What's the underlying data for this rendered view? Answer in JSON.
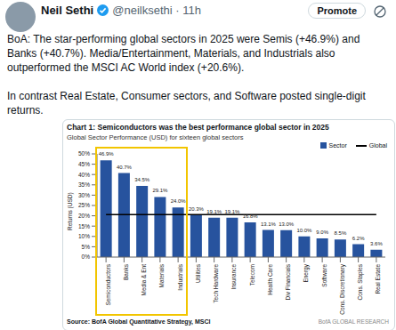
{
  "tweet": {
    "name": "Neil Sethi",
    "meta": "@neilksethi · 11h",
    "button": "Promote",
    "paragraphs": [
      "BoA: The star-performing global sectors in 2025 were Semis (+46.9%) and Banks (+40.7%). Media/Entertainment, Materials, and Industrials also outperformed the MSCI AC World index (+20.6%).",
      "In contrast Real Estate, Consumer sectors, and Software posted single-digit returns."
    ]
  },
  "chart_data": {
    "type": "bar",
    "title": "Chart 1: Semiconductors was the best performance global sector in 2025",
    "subtitle": "Global Sector Performance (USD) for sixteen global sectors",
    "y_label": "Returns (USD)",
    "source": "Source: BofA Global Quantitative Strategy, MSCI",
    "brand": "BofA GLOBAL RESEARCH",
    "categories": [
      "Semiconductors",
      "Banks",
      "Media & Ent",
      "Materials",
      "Industrials",
      "Utilities",
      "Tech Hardware",
      "Insurance",
      "Telecom",
      "Health Care",
      "Div Financials",
      "Energy",
      "Software",
      "Cons. Discretionary",
      "Cons. Staples",
      "Real Estate"
    ],
    "series": [
      {
        "name": "Sector",
        "type": "bar",
        "color": "#27539e",
        "values": [
          46.9,
          40.7,
          34.5,
          29.1,
          24.0,
          20.3,
          19.1,
          19.1,
          16.8,
          13.1,
          13.0,
          10.0,
          9.0,
          8.5,
          6.2,
          3.6
        ],
        "value_labels": [
          "46.9%",
          "40.7%",
          "34.5%",
          "29.1%",
          "24.0%",
          "20.3%",
          "19.1%",
          "19.1%",
          "16.8%",
          "13.1%",
          "13.0%",
          "10.0%",
          "9.0%",
          "8.5%",
          "6.2%",
          "3.6%"
        ]
      },
      {
        "name": "Global",
        "type": "line",
        "color": "#000000",
        "values": [
          20.6,
          20.6,
          20.6,
          20.6,
          20.6,
          20.6,
          20.6,
          20.6,
          20.6,
          20.6,
          20.6,
          20.6,
          20.6,
          20.6,
          20.6,
          20.6
        ]
      }
    ],
    "ylim": [
      0,
      50
    ],
    "yticks": [
      {
        "value": 0,
        "label": "0%"
      },
      {
        "value": 5,
        "label": "5%"
      },
      {
        "value": 10,
        "label": "10%"
      },
      {
        "value": 15,
        "label": "15%"
      },
      {
        "value": 20,
        "label": "20%"
      },
      {
        "value": 25,
        "label": "25%"
      },
      {
        "value": 30,
        "label": "30%"
      },
      {
        "value": 35,
        "label": "35%"
      },
      {
        "value": 40,
        "label": "40%"
      },
      {
        "value": 45,
        "label": "45%"
      },
      {
        "value": 50,
        "label": "50%"
      }
    ],
    "grid": false,
    "data_labels": true,
    "legend": "top"
  }
}
